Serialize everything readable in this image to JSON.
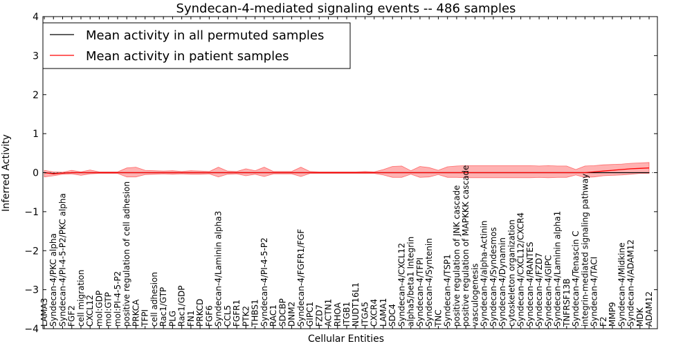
{
  "chart_data": {
    "type": "line",
    "title": "Syndecan-4-mediated signaling events -- 486 samples",
    "xlabel": "Cellular Entities",
    "ylabel": "Inferred Activity",
    "ylim": [
      -4,
      4
    ],
    "yticks": [
      "4",
      "3",
      "2",
      "1",
      "0",
      "−1",
      "−2",
      "−3",
      "−4"
    ],
    "grid": false,
    "legend_position": "top-left",
    "categories": [
      "LAMA3",
      "Syndecan-4/PKC alpha",
      "Syndecan-4/PI-4-5-P2/PKC alpha",
      "FGF2",
      "cell migration",
      "CXCL12",
      "mol:GDP",
      "mol:GTP",
      "mol:PI-4-5-P2",
      "positive regulation of cell adhesion",
      "PRKCA",
      "TFPI",
      "cell adhesion",
      "Rac1/GTP",
      "PLG",
      "Rac1/GDP",
      "FN1",
      "PRKCD",
      "FGF6",
      "Syndecan-4/Laminin alpha3",
      "CCL5",
      "FGFR1",
      "PTK2",
      "THBS1",
      "Syndecan-4/PI-4-5-P2",
      "RAC1",
      "SDCBP",
      "DNM2",
      "Syndecan-4/FGFR1/FGF",
      "GIPC1",
      "FZD7",
      "ACTN1",
      "RHOA",
      "ITGB1",
      "NUDT16L1",
      "ITGA5",
      "CXCR4",
      "LAMA1",
      "SDC4",
      "Syndecan-4/CXCL12",
      "alpha5/beta1 Integrin",
      "Syndecan-4/TFPI",
      "Syndecan-4/Syntenin",
      "TNC",
      "Syndecan-4/TSP1",
      "positive regulation of JNK cascade",
      "positive regulation of MAPKKK cascade",
      "vasculogenesis",
      "Syndecan-4/alpha-Actinin",
      "Syndecan-4/Syndesmos",
      "Syndecan-4/Dynamin",
      "cytoskeleton organization",
      "Syndecan-4/CXCL12/CXCR4",
      "Syndecan-4/RANTES",
      "Syndecan-4/FZD7",
      "Syndecan-4/GIPC",
      "Syndecan-4/Laminin alpha1",
      "TNFRSF13B",
      "Syndecan-4/Tenascin C",
      "integrin-mediated signaling pathway",
      "Syndecan-4/TACI",
      "F2",
      "MMP9",
      "Syndecan-4/Midkine",
      "Syndecan-4/ADAM12",
      "MDK",
      "ADAM12"
    ],
    "series": [
      {
        "name": "Mean activity in all permuted samples",
        "color": "#000000",
        "values": [
          0.0,
          -0.02,
          -0.01,
          0.0,
          0.0,
          0.0,
          0.0,
          0.0,
          0.0,
          0.0,
          0.0,
          0.0,
          0.0,
          0.0,
          0.0,
          0.0,
          0.0,
          0.0,
          0.0,
          0.0,
          0.0,
          0.0,
          0.0,
          0.0,
          0.0,
          0.0,
          0.0,
          0.0,
          0.0,
          0.0,
          0.0,
          0.0,
          0.0,
          0.0,
          0.0,
          0.0,
          0.0,
          0.0,
          0.0,
          0.0,
          0.0,
          0.0,
          0.0,
          0.0,
          0.0,
          0.0,
          0.0,
          0.0,
          0.0,
          0.0,
          0.0,
          0.0,
          0.0,
          0.0,
          0.0,
          0.0,
          0.0,
          0.0,
          0.0,
          0.0,
          0.0,
          0.0,
          0.0,
          0.0,
          0.0,
          0.0,
          0.0
        ]
      },
      {
        "name": "Mean activity in patient samples",
        "color": "#ff0000",
        "values": [
          0.0,
          -0.03,
          -0.01,
          0.0,
          0.0,
          0.0,
          0.0,
          0.0,
          0.0,
          0.0,
          0.0,
          0.0,
          0.0,
          0.0,
          0.0,
          0.0,
          0.0,
          0.0,
          0.0,
          0.0,
          0.0,
          0.0,
          0.0,
          0.0,
          0.0,
          0.0,
          0.0,
          0.0,
          0.0,
          0.0,
          0.0,
          0.0,
          0.0,
          0.0,
          0.0,
          0.0,
          0.0,
          0.0,
          0.0,
          0.0,
          0.0,
          0.0,
          0.0,
          0.0,
          0.0,
          0.0,
          0.0,
          0.0,
          0.0,
          0.0,
          0.0,
          0.0,
          0.0,
          0.0,
          0.0,
          0.0,
          0.0,
          0.0,
          0.0,
          0.0,
          0.02,
          0.04,
          0.06,
          0.08,
          0.1,
          0.11,
          0.12
        ]
      }
    ],
    "band": {
      "name": "patient samples spread",
      "color": "#ff0000",
      "upper": [
        0.06,
        0.02,
        0.01,
        0.06,
        0.02,
        0.07,
        0.02,
        0.02,
        0.02,
        0.12,
        0.14,
        0.06,
        0.05,
        0.04,
        0.05,
        0.03,
        0.05,
        0.04,
        0.03,
        0.14,
        0.04,
        0.03,
        0.1,
        0.05,
        0.14,
        0.03,
        0.03,
        0.03,
        0.14,
        0.03,
        0.02,
        0.02,
        0.02,
        0.02,
        0.02,
        0.03,
        0.02,
        0.08,
        0.16,
        0.17,
        0.05,
        0.16,
        0.13,
        0.06,
        0.15,
        0.17,
        0.18,
        0.18,
        0.18,
        0.18,
        0.18,
        0.18,
        0.18,
        0.18,
        0.17,
        0.18,
        0.17,
        0.17,
        0.08,
        0.17,
        0.18,
        0.2,
        0.21,
        0.22,
        0.24,
        0.25,
        0.26
      ],
      "lower": [
        -0.11,
        -0.08,
        -0.04,
        -0.03,
        -0.07,
        -0.03,
        -0.02,
        -0.02,
        -0.02,
        -0.11,
        -0.11,
        -0.05,
        -0.04,
        -0.03,
        -0.04,
        -0.03,
        -0.04,
        -0.04,
        -0.03,
        -0.11,
        -0.04,
        -0.03,
        -0.08,
        -0.04,
        -0.1,
        -0.03,
        -0.03,
        -0.03,
        -0.1,
        -0.02,
        -0.02,
        -0.02,
        -0.02,
        -0.02,
        -0.02,
        -0.02,
        -0.02,
        -0.06,
        -0.12,
        -0.12,
        -0.04,
        -0.12,
        -0.11,
        -0.05,
        -0.12,
        -0.12,
        -0.13,
        -0.13,
        -0.13,
        -0.13,
        -0.13,
        -0.13,
        -0.13,
        -0.13,
        -0.12,
        -0.13,
        -0.12,
        -0.12,
        -0.06,
        -0.12,
        -0.11,
        -0.08,
        -0.07,
        -0.06,
        -0.04,
        -0.02,
        -0.02
      ]
    }
  }
}
